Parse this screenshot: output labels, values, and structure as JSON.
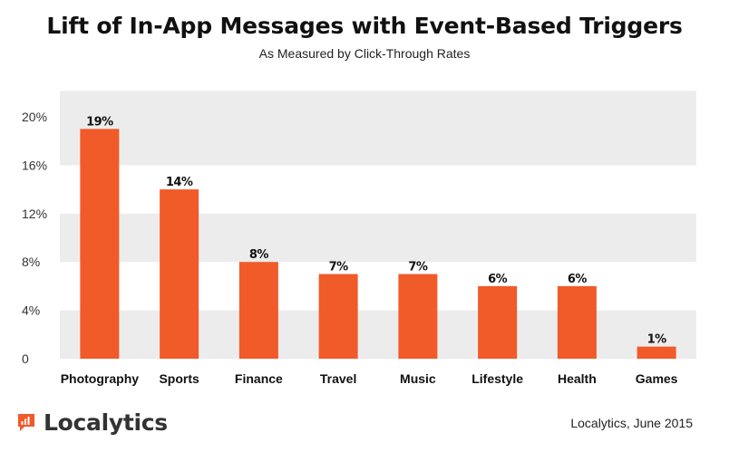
{
  "chart_data": {
    "type": "bar",
    "title": "Lift of In-App Messages with Event-Based Triggers",
    "subtitle": "As Measured by Click-Through Rates",
    "categories": [
      "Photography",
      "Sports",
      "Finance",
      "Travel",
      "Music",
      "Lifestyle",
      "Health",
      "Games"
    ],
    "values": [
      19,
      14,
      8,
      7,
      7,
      6,
      6,
      1
    ],
    "data_labels": [
      "19%",
      "14%",
      "8%",
      "7%",
      "7%",
      "6%",
      "6%",
      "1%"
    ],
    "y_ticks": [
      0,
      4,
      8,
      12,
      16,
      20
    ],
    "y_tick_labels": [
      "0",
      "4%",
      "8%",
      "12%",
      "16%",
      "20%"
    ],
    "ylim": [
      0,
      22
    ],
    "grid": "alternating bands",
    "bar_color": "#f15a29",
    "band_color": "#ececec"
  },
  "branding": {
    "logo_text": "Localytics",
    "logo_color": "#f15a29",
    "logo_icon": "bar-chart-bubble-icon"
  },
  "source": "Localytics, June 2015"
}
